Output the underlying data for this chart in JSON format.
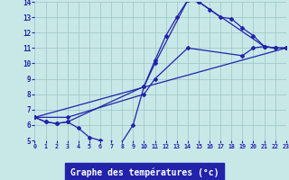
{
  "background_color": "#c8e8e8",
  "grid_color": "#99c4c4",
  "line_color": "#2222aa",
  "xlabel": "Graphe des températures (°c)",
  "xlim": [
    0,
    23
  ],
  "ylim": [
    5,
    14
  ],
  "xticks": [
    0,
    1,
    2,
    3,
    4,
    5,
    6,
    7,
    8,
    9,
    10,
    11,
    12,
    13,
    14,
    15,
    16,
    17,
    18,
    19,
    20,
    21,
    22,
    23
  ],
  "yticks": [
    5,
    6,
    7,
    8,
    9,
    10,
    11,
    12,
    13,
    14
  ],
  "series": [
    {
      "x": [
        0,
        1,
        2,
        3,
        4,
        5,
        6,
        7,
        8,
        9,
        10,
        11,
        12,
        13,
        14,
        15,
        16,
        17,
        18,
        19,
        20,
        21,
        22,
        23
      ],
      "y": [
        6.5,
        6.2,
        6.1,
        6.2,
        5.8,
        5.2,
        5.0,
        4.9,
        4.9,
        6.0,
        8.5,
        10.2,
        11.8,
        13.0,
        14.1,
        14.0,
        13.5,
        13.0,
        12.9,
        12.3,
        11.8,
        11.1,
        11.0,
        11.0
      ]
    },
    {
      "x": [
        0,
        1,
        2,
        3,
        10,
        11,
        14,
        15,
        21,
        22,
        23
      ],
      "y": [
        6.5,
        6.2,
        6.1,
        6.2,
        8.5,
        10.0,
        14.1,
        14.0,
        11.1,
        11.0,
        11.0
      ]
    },
    {
      "x": [
        0,
        3,
        10,
        11,
        14,
        19,
        20,
        21,
        22,
        23
      ],
      "y": [
        6.5,
        6.5,
        8.0,
        9.0,
        11.0,
        10.5,
        11.0,
        11.1,
        11.0,
        11.0
      ]
    },
    {
      "x": [
        0,
        23
      ],
      "y": [
        6.5,
        11.0
      ]
    }
  ]
}
